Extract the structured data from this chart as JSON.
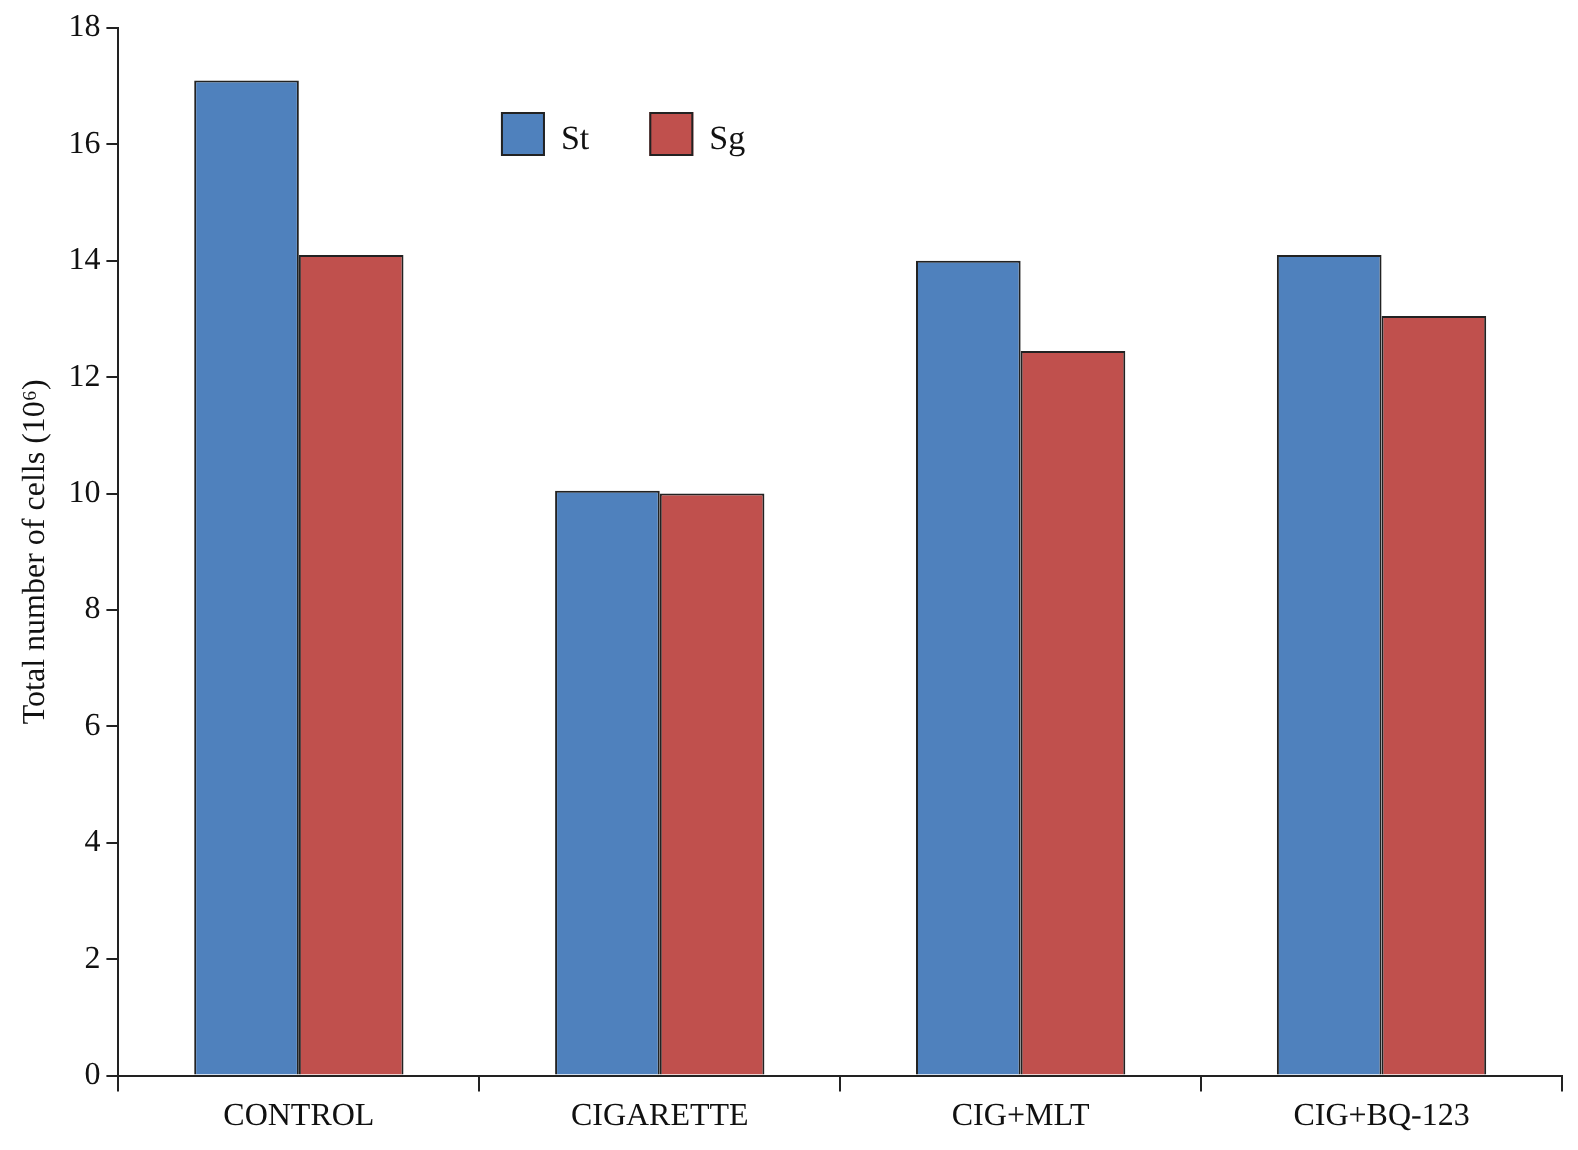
{
  "chart_data": {
    "type": "bar",
    "ylabel": "Total number of cells (10⁶)",
    "categories": [
      "CONTROL",
      "CIGARETTE",
      "CIG+MLT",
      "CIG+BQ-123"
    ],
    "series": [
      {
        "name": "St",
        "color": "#4f81bd",
        "values": [
          17.1,
          10.05,
          14.0,
          14.1
        ]
      },
      {
        "name": "Sg",
        "color": "#c0504d",
        "values": [
          14.1,
          10.0,
          12.45,
          13.05
        ]
      }
    ],
    "ylim": [
      0,
      18
    ],
    "yticks": [
      0,
      2,
      4,
      6,
      8,
      10,
      12,
      14,
      16,
      18
    ],
    "grid": false,
    "legend": "top"
  }
}
